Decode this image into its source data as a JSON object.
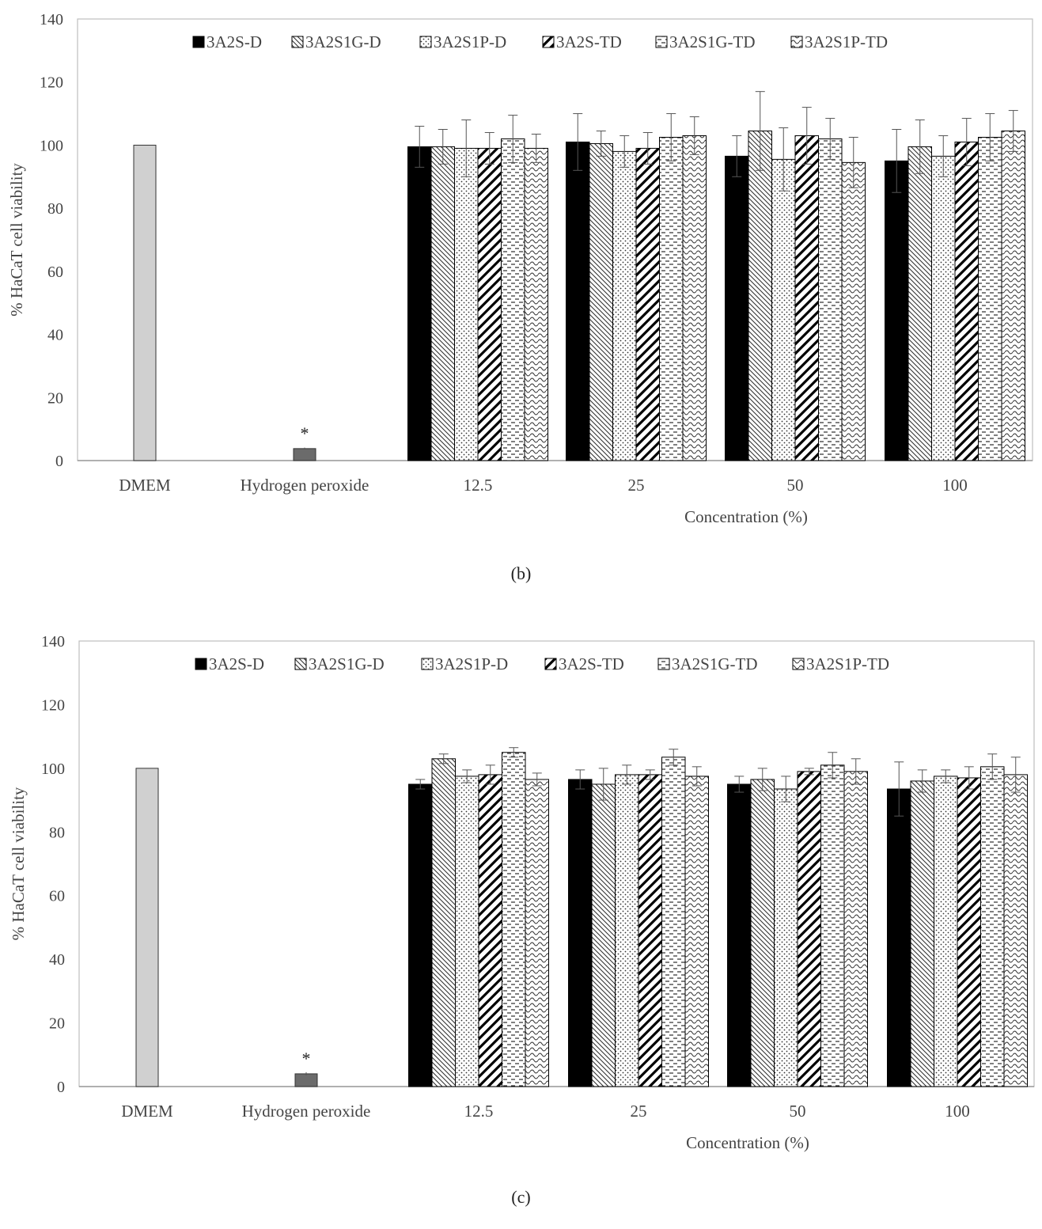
{
  "chart_data": [
    {
      "type": "bar",
      "panel_label": "(b)",
      "ylabel": "% HaCaT cell viability",
      "xlabel": "Concentration (%)",
      "ylim": [
        0,
        140
      ],
      "yticks": [
        0,
        20,
        40,
        60,
        80,
        100,
        120,
        140
      ],
      "legend_position": "top",
      "controls": [
        {
          "name": "DMEM",
          "value": 100,
          "error": 0,
          "color": "#d0d0d0",
          "marker": ""
        },
        {
          "name": "Hydrogen peroxide",
          "value": 3.8,
          "error": 0.3,
          "color": "#6b6b6b",
          "marker": "*"
        }
      ],
      "categories": [
        "12.5",
        "25",
        "50",
        "100"
      ],
      "series": [
        {
          "name": "3A2S-D",
          "pattern": "solid",
          "values": [
            99.5,
            101,
            96.5,
            95
          ],
          "errors": [
            6.5,
            9,
            6.5,
            10
          ]
        },
        {
          "name": "3A2S1G-D",
          "pattern": "diag-back",
          "values": [
            99.5,
            100.5,
            104.5,
            99.5
          ],
          "errors": [
            5.5,
            4,
            12.5,
            8.5
          ]
        },
        {
          "name": "3A2S1P-D",
          "pattern": "dots",
          "values": [
            99,
            98,
            95.5,
            96.5
          ],
          "errors": [
            9,
            5,
            10,
            6.5
          ]
        },
        {
          "name": "3A2S-TD",
          "pattern": "diag-thick",
          "values": [
            99,
            99,
            103,
            101
          ],
          "errors": [
            5,
            5,
            9,
            7.5
          ]
        },
        {
          "name": "3A2S1G-TD",
          "pattern": "dashes",
          "values": [
            102,
            102.5,
            102,
            102.5
          ],
          "errors": [
            7.5,
            7.5,
            6.5,
            7.5
          ]
        },
        {
          "name": "3A2S1P-TD",
          "pattern": "waves",
          "values": [
            99,
            103,
            94.5,
            104.5
          ],
          "errors": [
            4.5,
            6,
            8,
            6.5
          ]
        }
      ]
    },
    {
      "type": "bar",
      "panel_label": "(c)",
      "ylabel": "% HaCaT cell viability",
      "xlabel": "Concentration (%)",
      "ylim": [
        0,
        140
      ],
      "yticks": [
        0,
        20,
        40,
        60,
        80,
        100,
        120,
        140
      ],
      "legend_position": "top",
      "controls": [
        {
          "name": "DMEM",
          "value": 100,
          "error": 0,
          "color": "#d0d0d0",
          "marker": ""
        },
        {
          "name": "Hydrogen peroxide",
          "value": 4,
          "error": 0.5,
          "color": "#6b6b6b",
          "marker": "*"
        }
      ],
      "categories": [
        "12.5",
        "25",
        "50",
        "100"
      ],
      "series": [
        {
          "name": "3A2S-D",
          "pattern": "solid",
          "values": [
            95,
            96.5,
            95,
            93.5
          ],
          "errors": [
            1.5,
            3,
            2.5,
            8.5
          ]
        },
        {
          "name": "3A2S1G-D",
          "pattern": "diag-back",
          "values": [
            103,
            95,
            96.5,
            96
          ],
          "errors": [
            1.5,
            5,
            3.5,
            3.5
          ]
        },
        {
          "name": "3A2S1P-D",
          "pattern": "dots",
          "values": [
            97.5,
            98,
            93.5,
            97.5
          ],
          "errors": [
            2,
            3,
            4,
            2
          ]
        },
        {
          "name": "3A2S-TD",
          "pattern": "diag-thick",
          "values": [
            98,
            98,
            99,
            97
          ],
          "errors": [
            3,
            1.5,
            1,
            3.5
          ]
        },
        {
          "name": "3A2S1G-TD",
          "pattern": "dashes",
          "values": [
            105,
            103.5,
            101,
            100.5
          ],
          "errors": [
            1.5,
            2.5,
            4,
            4
          ]
        },
        {
          "name": "3A2S1P-TD",
          "pattern": "waves",
          "values": [
            96.5,
            97.5,
            99,
            98
          ],
          "errors": [
            2,
            3,
            4,
            5.5
          ]
        }
      ]
    }
  ]
}
